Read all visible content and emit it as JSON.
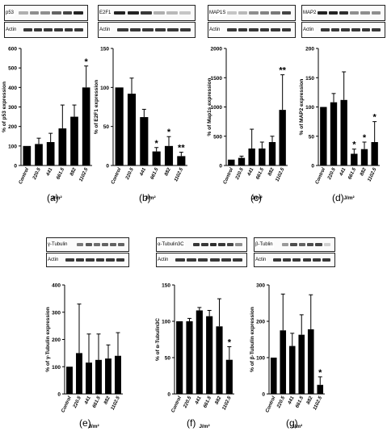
{
  "chart_data": [
    {
      "id": "a",
      "type": "bar",
      "label": "(a)",
      "blots": [
        {
          "name": "p53"
        },
        {
          "name": "Actin"
        }
      ],
      "ylabel": "% of p53 expression",
      "xlabel": "J/m²",
      "ylim": [
        0,
        600
      ],
      "yticks": [
        0,
        100,
        200,
        300,
        400,
        500,
        600
      ],
      "categories": [
        "Control",
        "220.5",
        "441",
        "661.5",
        "882",
        "1102.5"
      ],
      "values": [
        100,
        110,
        120,
        190,
        250,
        400
      ],
      "errors": [
        0,
        30,
        45,
        120,
        60,
        110
      ],
      "significance": [
        "",
        "",
        "",
        "",
        "",
        "*"
      ]
    },
    {
      "id": "b",
      "type": "bar",
      "label": "(b)",
      "blots": [
        {
          "name": "E2F1"
        },
        {
          "name": "Actin"
        }
      ],
      "ylabel": "% of E2F1 expression",
      "xlabel": "J/m²",
      "ylim": [
        0,
        150
      ],
      "yticks": [
        0,
        50,
        100,
        150
      ],
      "categories": [
        "Control",
        "220.5",
        "441",
        "661.5",
        "882",
        "1102.5"
      ],
      "values": [
        100,
        92,
        62,
        18,
        25,
        12
      ],
      "errors": [
        0,
        20,
        10,
        5,
        12,
        5
      ],
      "significance": [
        "",
        "",
        "",
        "*",
        "*",
        "**"
      ]
    },
    {
      "id": "c",
      "type": "bar",
      "label": "(c)",
      "blots": [
        {
          "name": "MAP1S"
        },
        {
          "name": "Actin"
        }
      ],
      "ylabel": "% of Map1s expression",
      "xlabel": "J/m²",
      "ylim": [
        0,
        2000
      ],
      "yticks": [
        0,
        500,
        1000,
        1500,
        2000
      ],
      "categories": [
        "Control",
        "220.5",
        "441",
        "661.5",
        "882",
        "1102.5"
      ],
      "values": [
        100,
        130,
        290,
        290,
        400,
        950
      ],
      "errors": [
        0,
        30,
        330,
        110,
        100,
        600
      ],
      "significance": [
        "",
        "",
        "",
        "",
        "",
        "**"
      ]
    },
    {
      "id": "d",
      "type": "bar",
      "label": "(d)",
      "blots": [
        {
          "name": "MAP2"
        },
        {
          "name": "Actin"
        }
      ],
      "ylabel": "% of MAP2 expression",
      "xlabel": "J/m²",
      "ylim": [
        0,
        200
      ],
      "yticks": [
        0,
        50,
        100,
        150,
        200
      ],
      "categories": [
        "Control",
        "220.5",
        "441",
        "661.5",
        "882",
        "1102.5"
      ],
      "values": [
        100,
        108,
        112,
        20,
        28,
        40
      ],
      "errors": [
        0,
        15,
        48,
        8,
        12,
        35
      ],
      "significance": [
        "",
        "",
        "",
        "*",
        "*",
        "*"
      ]
    },
    {
      "id": "e",
      "type": "bar",
      "label": "(e)",
      "blots": [
        {
          "name": "γ-Tubulin"
        },
        {
          "name": "Actin"
        }
      ],
      "ylabel": "% of γ-Tubulin expression",
      "xlabel": "J/m²",
      "ylim": [
        0,
        400
      ],
      "yticks": [
        0,
        100,
        200,
        300,
        400
      ],
      "categories": [
        "Control",
        "220.5",
        "441",
        "661.5",
        "882",
        "1102.5"
      ],
      "values": [
        100,
        150,
        115,
        125,
        130,
        140
      ],
      "errors": [
        0,
        180,
        105,
        95,
        50,
        85
      ],
      "significance": [
        "",
        "",
        "",
        "",
        "",
        ""
      ]
    },
    {
      "id": "f",
      "type": "bar",
      "label": "(f)",
      "blots": [
        {
          "name": "α-Tubulin3C"
        },
        {
          "name": "Actin"
        }
      ],
      "ylabel": "% of α-Tubulin3C",
      "xlabel": "J/m²",
      "ylim": [
        0,
        150
      ],
      "yticks": [
        0,
        50,
        100,
        150
      ],
      "categories": [
        "Control",
        "220.5",
        "441",
        "661.5",
        "882",
        "1102.5"
      ],
      "values": [
        100,
        100,
        115,
        107,
        93,
        47
      ],
      "errors": [
        0,
        4,
        4,
        8,
        38,
        18
      ],
      "significance": [
        "",
        "",
        "",
        "",
        "",
        "*"
      ]
    },
    {
      "id": "g",
      "type": "bar",
      "label": "(g)",
      "blots": [
        {
          "name": "β-Tublin"
        },
        {
          "name": "Actin"
        }
      ],
      "ylabel": "% of β-Tubulin expression",
      "xlabel": "J/m²",
      "ylim": [
        0,
        300
      ],
      "yticks": [
        0,
        100,
        200,
        300
      ],
      "categories": [
        "Control",
        "220.5",
        "441",
        "661.5",
        "882",
        "1102.5"
      ],
      "values": [
        100,
        175,
        132,
        163,
        178,
        25
      ],
      "errors": [
        0,
        100,
        35,
        55,
        95,
        22
      ],
      "significance": [
        "",
        "",
        "",
        "",
        "",
        "*"
      ]
    }
  ]
}
